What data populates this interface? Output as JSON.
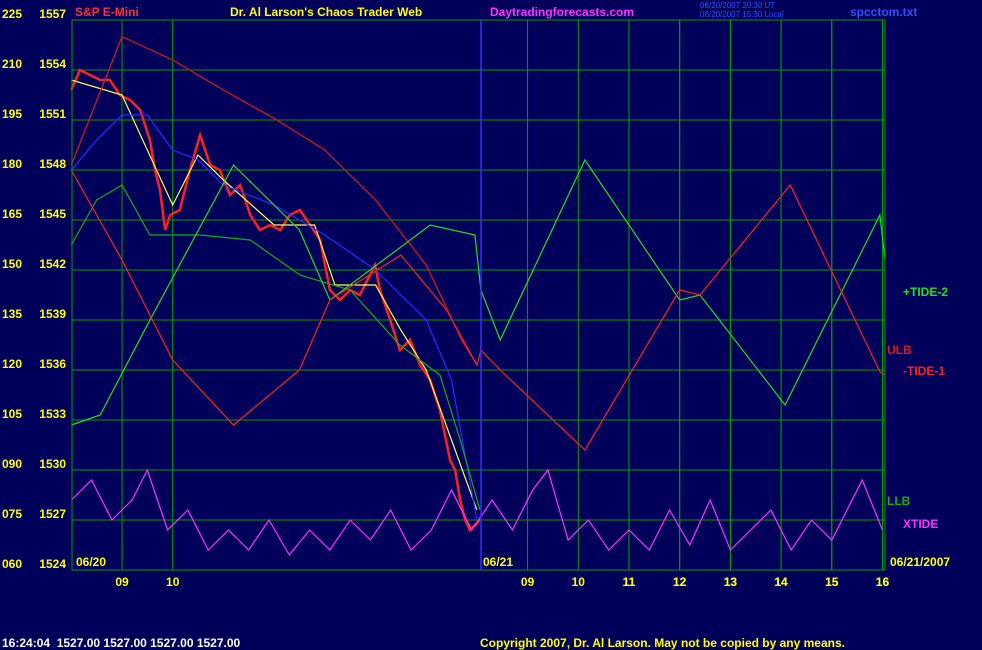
{
  "chart_data": {
    "type": "line",
    "title": "Dr. Al Larson's Chaos Trader Web",
    "instrument": "S&P E-Mini",
    "site": "Daytradingforecasts.com",
    "timestamps": [
      "06/20/2007 20:30 UT",
      "06/20/2007 15:30 Local"
    ],
    "file": "spcctom.txt",
    "date_labels": [
      "06/20",
      "06/21",
      "06/21/2007"
    ],
    "status": "16:24:04  1527.00 1527.00 1527.00 1527.00",
    "copyright": "Copyright 2007, Dr. Al Larson. May not be copied by any means.",
    "grid": true,
    "xlim": [
      0,
      16.05
    ],
    "xticks": [
      {
        "value": 1,
        "label": "09"
      },
      {
        "value": 2,
        "label": "10"
      },
      11,
      12,
      13,
      14,
      15,
      16,
      {
        "value": 9,
        "label": "09"
      },
      {
        "value": 10,
        "label": "10"
      },
      {
        "value": 11,
        "label": "11"
      },
      {
        "value": 12,
        "label": "12"
      },
      {
        "value": 13,
        "label": "13"
      },
      {
        "value": 14,
        "label": "14"
      },
      {
        "value": 15,
        "label": "15"
      },
      {
        "value": 16,
        "label": "16"
      }
    ],
    "ylim": [
      1524,
      1557
    ],
    "yticks": [
      1524,
      1527,
      1530,
      1533,
      1536,
      1539,
      1542,
      1545,
      1548,
      1551,
      1554,
      1557
    ],
    "y2lim": [
      60,
      225
    ],
    "y2ticks": [
      {
        "value": 60,
        "label": "060"
      },
      {
        "value": 75,
        "label": "075"
      },
      {
        "value": 90,
        "label": "090"
      },
      105,
      120,
      135,
      150,
      165,
      180,
      195,
      210,
      225
    ],
    "series": [
      {
        "color": "#ff2020",
        "x": [
          0,
          0.17,
          0.37,
          0.57,
          0.76,
          0.96,
          1.16,
          1.36,
          1.55,
          1.65,
          1.75,
          1.85,
          1.95,
          2.14,
          2.34,
          2.54,
          2.64,
          2.74,
          2.93,
          3.13,
          3.33,
          3.53,
          3.72,
          3.92,
          4.12,
          4.31,
          4.51,
          4.71,
          4.91,
          5.1,
          5.3,
          5.5,
          5.69,
          5.89,
          5.99,
          6.09,
          6.29,
          6.48,
          6.68,
          6.88,
          7.08,
          7.27,
          7.47,
          7.57,
          7.67,
          7.77,
          7.86,
          8.06
        ],
        "values": [
          1552.8,
          1554.0,
          1553.7,
          1553.4,
          1553.4,
          1552.5,
          1552.2,
          1551.6,
          1549.8,
          1548.0,
          1546.8,
          1544.4,
          1545.3,
          1545.6,
          1548.0,
          1550.1,
          1549.2,
          1548.3,
          1548.0,
          1546.5,
          1547.1,
          1545.3,
          1544.4,
          1544.7,
          1544.4,
          1545.3,
          1545.6,
          1544.7,
          1543.8,
          1540.8,
          1540.2,
          1540.8,
          1540.5,
          1541.7,
          1542.3,
          1540.8,
          1539.0,
          1537.2,
          1537.8,
          1536.3,
          1535.4,
          1533.6,
          1530.6,
          1530.0,
          1528.2,
          1527.0,
          1526.4,
          1527.0
        ]
      },
      {
        "color": "#ffff40",
        "x": [
          0,
          1,
          1.5,
          2,
          2.5,
          3,
          4,
          4.8,
          5.2,
          6,
          6.5,
          7,
          7.5,
          8
        ],
        "values": [
          1553.4,
          1552.5,
          1549.2,
          1545.9,
          1548.9,
          1547.4,
          1544.7,
          1544.7,
          1541.1,
          1541.1,
          1538.4,
          1536.0,
          1531.8,
          1527.6
        ]
      },
      {
        "color": "#2a2aff",
        "x": [
          0,
          0.5,
          1,
          1.5,
          2,
          2.5,
          3,
          4,
          5,
          6,
          7,
          7.5,
          8
        ],
        "values": [
          1548.0,
          1549.8,
          1551.3,
          1551.3,
          1549.2,
          1548.6,
          1547.1,
          1545.9,
          1544.1,
          1542.0,
          1539.0,
          1535.4,
          1527.0
        ]
      },
      {
        "name": "ULB",
        "color": "#e01818",
        "x": [
          0,
          1,
          2,
          3,
          4,
          5,
          6,
          7,
          7.7,
          8
        ],
        "values": [
          1548.3,
          1556.0,
          1554.6,
          1552.8,
          1551.1,
          1549.2,
          1546.2,
          1542.3,
          1537.8,
          1536.3
        ]
      },
      {
        "name": "LLB",
        "color": "#10b010",
        "x": [
          0,
          0.5,
          1,
          1.55,
          2.54,
          3.53,
          4.51,
          5.5,
          6.48,
          7.27,
          7.67,
          8.06
        ],
        "values": [
          1543.5,
          1546.2,
          1547.1,
          1544.1,
          1544.1,
          1543.8,
          1541.7,
          1540.8,
          1537.5,
          1535.7,
          1531.8,
          1527.6
        ]
      },
      {
        "name": "+TIDE-2",
        "color": "#20e020",
        "x": [
          0,
          0.57,
          1.55,
          3.2,
          4.5,
          5.1,
          7.08,
          7.96,
          8.08,
          8.46,
          10.13,
          12.0,
          12.4,
          14.08,
          15.95,
          16.05
        ],
        "values": [
          1532.7,
          1533.3,
          1539.0,
          1548.3,
          1544.4,
          1540.2,
          1544.7,
          1544.1,
          1540.8,
          1537.8,
          1548.6,
          1540.2,
          1540.5,
          1533.9,
          1545.3,
          1542.6
        ]
      },
      {
        "name": "-TIDE-1",
        "color": "#ff2020",
        "x": [
          0,
          1,
          2,
          3.2,
          4.5,
          5.1,
          6.5,
          7.4,
          8.0,
          8.08,
          8.46,
          10.13,
          12.0,
          12.4,
          14.18,
          15.95,
          16.05
        ],
        "values": [
          1548.0,
          1542.6,
          1536.6,
          1532.7,
          1536.0,
          1540.2,
          1542.9,
          1539.6,
          1536.3,
          1537.2,
          1536.0,
          1531.2,
          1540.8,
          1540.5,
          1547.1,
          1535.9,
          1535.7
        ]
      },
      {
        "name": "XTIDE",
        "color": "#ff30ff",
        "x": [
          0,
          0.4,
          0.8,
          1.2,
          1.5,
          1.9,
          2.3,
          2.7,
          3.1,
          3.5,
          3.9,
          4.3,
          4.7,
          5.1,
          5.5,
          5.9,
          6.3,
          6.7,
          7.1,
          7.5,
          7.9,
          8.3,
          8.7,
          9.1,
          9.4,
          9.8,
          10.2,
          10.6,
          11.0,
          11.4,
          11.8,
          12.2,
          12.6,
          13.0,
          13.4,
          13.8,
          14.2,
          14.6,
          15.0,
          15.3,
          15.6,
          16.0
        ],
        "values": [
          1528.2,
          1529.4,
          1527.0,
          1528.2,
          1530.0,
          1526.4,
          1527.6,
          1525.2,
          1526.4,
          1525.2,
          1527.0,
          1524.9,
          1526.4,
          1525.2,
          1527.0,
          1525.8,
          1527.6,
          1525.2,
          1526.4,
          1528.8,
          1526.4,
          1528.2,
          1526.4,
          1528.8,
          1530.0,
          1525.8,
          1527.0,
          1525.2,
          1526.4,
          1525.2,
          1527.6,
          1525.5,
          1528.2,
          1525.2,
          1526.4,
          1527.6,
          1525.2,
          1527.0,
          1525.8,
          1527.6,
          1529.4,
          1526.4
        ]
      }
    ]
  }
}
